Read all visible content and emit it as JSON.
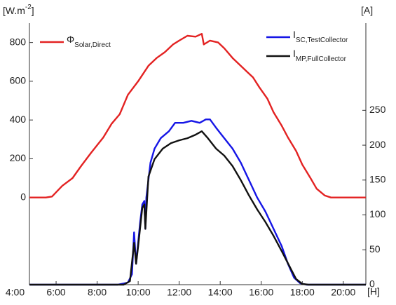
{
  "chart_data": {
    "type": "line",
    "ylabel": {
      "text": "[W.m",
      "sup": "-2",
      "end": "]"
    },
    "y2label": "[A]",
    "xlabel": "[H]",
    "xlim": [
      4.7,
      21.1
    ],
    "xticks": [
      {
        "value": 4,
        "label": "4:00"
      },
      {
        "value": 6,
        "label": "6:00"
      },
      {
        "value": 8,
        "label": "8:00"
      },
      {
        "value": 10,
        "label": "10:00"
      },
      {
        "value": 12,
        "label": "12:00"
      },
      {
        "value": 14,
        "label": "14:00"
      },
      {
        "value": 16,
        "label": "16:00"
      },
      {
        "value": 18,
        "label": "18:00"
      },
      {
        "value": 20,
        "label": "20:00"
      }
    ],
    "ylim": [
      -450,
      900
    ],
    "yticks": [
      0,
      200,
      400,
      600,
      800
    ],
    "y2lim": [
      0,
      375
    ],
    "y2ticks": [
      0,
      50,
      100,
      150,
      200,
      250
    ],
    "series": [
      {
        "name": "Φ",
        "name_sub": "Solar,Direct",
        "color": "#e32222",
        "axis": "y",
        "x": [
          4.7,
          5.5,
          5.8,
          6.3,
          6.8,
          7.2,
          7.7,
          8.3,
          8.7,
          9.1,
          9.5,
          10.0,
          10.5,
          10.9,
          11.3,
          11.7,
          12.0,
          12.4,
          12.8,
          13.1,
          13.2,
          13.5,
          13.9,
          14.2,
          14.6,
          14.9,
          15.3,
          15.6,
          15.9,
          16.3,
          16.6,
          17.0,
          17.3,
          17.7,
          18.0,
          18.4,
          18.7,
          19.1,
          19.4,
          21.1
        ],
        "values": [
          0,
          0,
          5,
          60,
          100,
          160,
          230,
          310,
          380,
          430,
          530,
          600,
          680,
          720,
          750,
          790,
          810,
          835,
          830,
          845,
          790,
          810,
          800,
          770,
          720,
          690,
          650,
          620,
          570,
          510,
          440,
          370,
          310,
          240,
          170,
          100,
          45,
          10,
          0,
          0
        ]
      },
      {
        "name": "I",
        "name_sub": "SC,TestCollector",
        "color": "#1515e6",
        "axis": "y2",
        "x": [
          4.7,
          9.0,
          9.5,
          9.7,
          9.8,
          9.9,
          10.0,
          10.1,
          10.2,
          10.3,
          10.35,
          10.4,
          10.6,
          10.8,
          11.1,
          11.5,
          11.8,
          12.2,
          12.6,
          13.0,
          13.3,
          13.5,
          13.8,
          14.2,
          14.6,
          15.0,
          15.4,
          15.8,
          16.2,
          16.6,
          17.0,
          17.3,
          17.6,
          17.9,
          18.2,
          21.1
        ],
        "values": [
          0,
          0,
          3,
          15,
          75,
          30,
          60,
          90,
          115,
          120,
          80,
          125,
          175,
          195,
          210,
          220,
          232,
          232,
          235,
          232,
          237,
          237,
          225,
          210,
          195,
          175,
          150,
          125,
          105,
          80,
          55,
          30,
          10,
          2,
          0,
          0
        ]
      },
      {
        "name": "I",
        "name_sub": "MP,FullCollector",
        "color": "#111111",
        "axis": "y2",
        "x": [
          4.7,
          9.3,
          9.6,
          9.8,
          9.9,
          10.0,
          10.2,
          10.3,
          10.35,
          10.5,
          10.8,
          11.2,
          11.6,
          12.0,
          12.4,
          12.8,
          13.1,
          13.4,
          13.8,
          14.2,
          14.6,
          15.0,
          15.4,
          15.8,
          16.2,
          16.6,
          17.0,
          17.4,
          17.7,
          18.0,
          18.3,
          21.1
        ],
        "values": [
          0,
          0,
          5,
          60,
          30,
          55,
          110,
          115,
          80,
          155,
          180,
          195,
          203,
          207,
          210,
          215,
          220,
          210,
          195,
          185,
          170,
          150,
          128,
          108,
          90,
          70,
          48,
          25,
          8,
          1,
          0,
          0
        ]
      }
    ]
  }
}
